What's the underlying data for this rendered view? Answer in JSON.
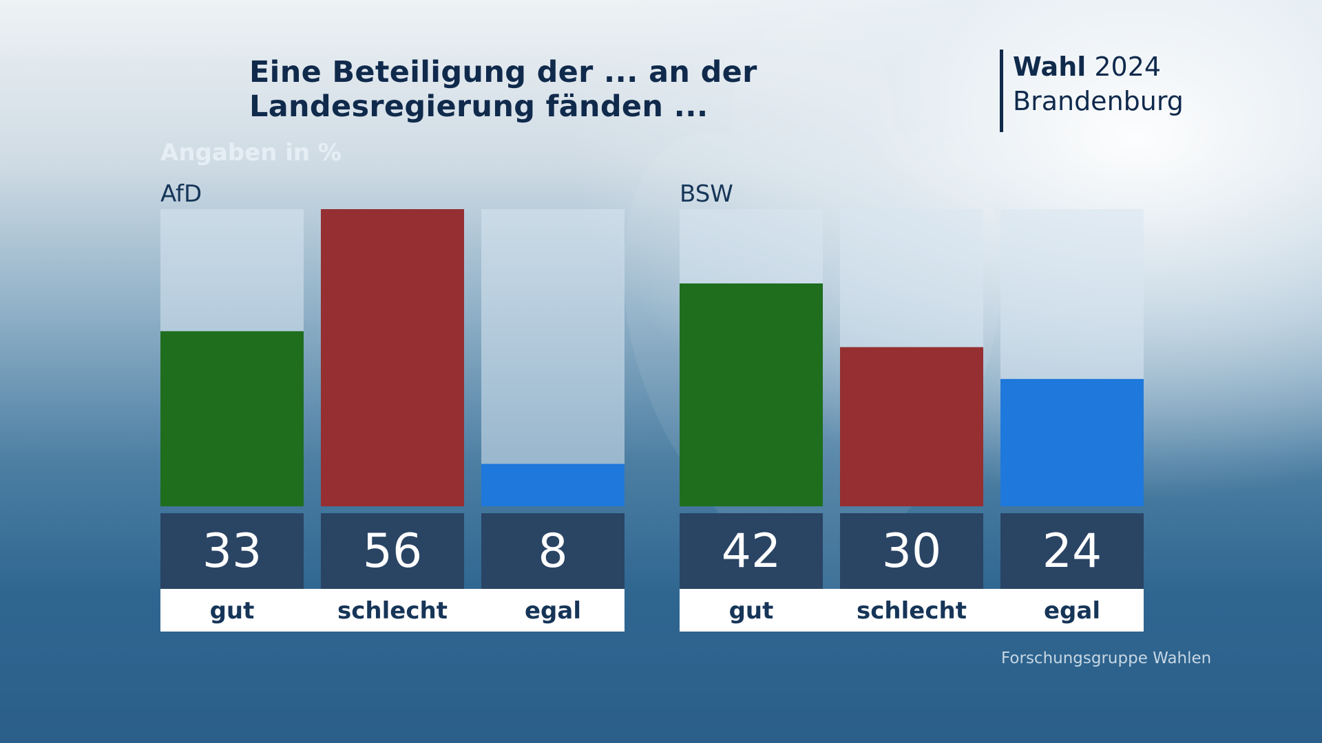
{
  "header": {
    "title_line1": "Eine Beteiligung der ... an der",
    "title_line2": "Landesregierung fänden ...",
    "brand_strong": "Wahl",
    "brand_year": "2024",
    "brand_region": "Brandenburg"
  },
  "unit_label": "Angaben in %",
  "source": "Forschungsgruppe Wahlen",
  "colors": {
    "gut": "#1e6e1e",
    "schlecht": "#952f31",
    "egal": "#1f78db",
    "value_box": "#2a4464",
    "track": "rgba(216,230,240,0.55)"
  },
  "chart_data": [
    {
      "type": "bar",
      "title": "AfD",
      "categories": [
        "gut",
        "schlecht",
        "egal"
      ],
      "values": [
        33,
        56,
        8
      ],
      "ylim": [
        0,
        56
      ]
    },
    {
      "type": "bar",
      "title": "BSW",
      "categories": [
        "gut",
        "schlecht",
        "egal"
      ],
      "values": [
        42,
        30,
        24
      ],
      "ylim": [
        0,
        56
      ]
    }
  ]
}
